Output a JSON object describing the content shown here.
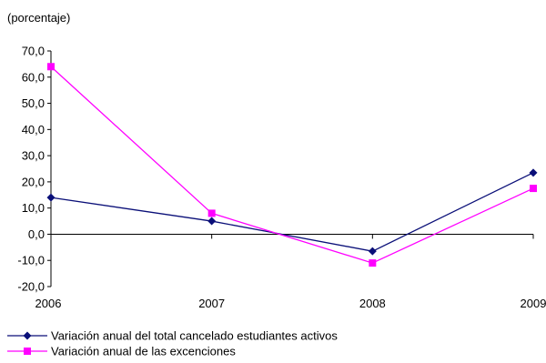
{
  "chart_data": {
    "type": "line",
    "unit_label": "(porcentaje)",
    "categories": [
      "2006",
      "2007",
      "2008",
      "2009"
    ],
    "yticks": [
      "70,0",
      "60,0",
      "50,0",
      "40,0",
      "30,0",
      "20,0",
      "10,0",
      "0,0",
      "-10,0",
      "-20,0"
    ],
    "ylim": [
      -20,
      70
    ],
    "grid": false,
    "legend_position": "bottom-left",
    "series": [
      {
        "name": "Variación anual del total cancelado estudiantes activos",
        "values": [
          14.0,
          5.0,
          -6.5,
          23.5
        ],
        "color": "#0a0f78",
        "marker": "diamond"
      },
      {
        "name": "Variación anual de las excenciones",
        "values": [
          64.0,
          8.0,
          -11.0,
          17.5
        ],
        "color": "#ff00ff",
        "marker": "square"
      }
    ]
  }
}
